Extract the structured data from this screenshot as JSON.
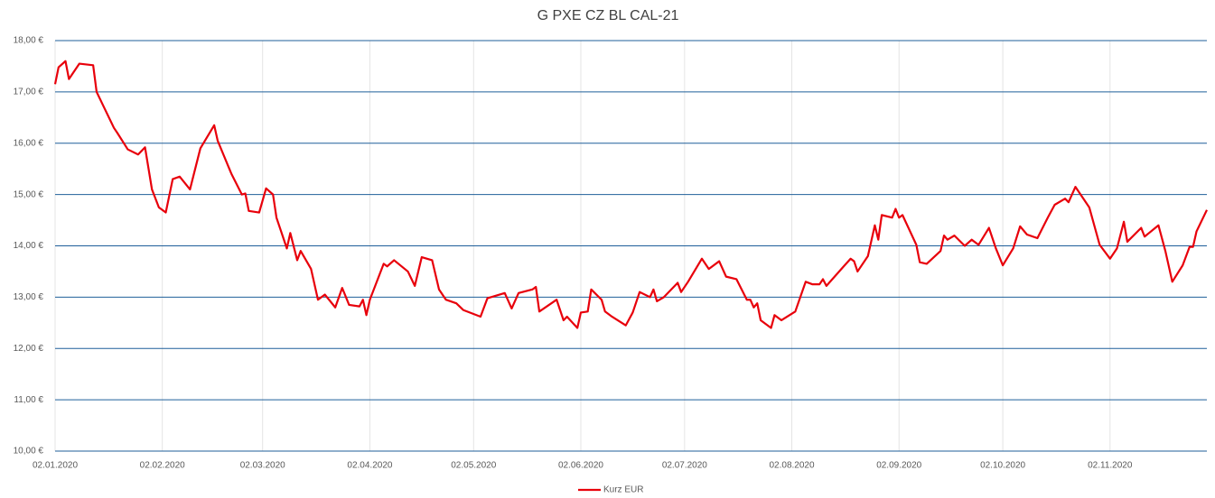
{
  "chart_data": {
    "type": "line",
    "title": "G PXE CZ BL CAL-21",
    "x": [
      "2020-01-02",
      "2020-01-03",
      "2020-01-05",
      "2020-01-06",
      "2020-01-09",
      "2020-01-13",
      "2020-01-14",
      "2020-01-16",
      "2020-01-19",
      "2020-01-20",
      "2020-01-23",
      "2020-01-26",
      "2020-01-28",
      "2020-01-30",
      "2020-02-01",
      "2020-02-03",
      "2020-02-05",
      "2020-02-07",
      "2020-02-10",
      "2020-02-13",
      "2020-02-17",
      "2020-02-18",
      "2020-02-22",
      "2020-02-25",
      "2020-02-26",
      "2020-02-27",
      "2020-03-01",
      "2020-03-03",
      "2020-03-05",
      "2020-03-06",
      "2020-03-09",
      "2020-03-10",
      "2020-03-12",
      "2020-03-13",
      "2020-03-16",
      "2020-03-18",
      "2020-03-20",
      "2020-03-23",
      "2020-03-25",
      "2020-03-27",
      "2020-03-30",
      "2020-03-31",
      "2020-04-01",
      "2020-04-02",
      "2020-04-06",
      "2020-04-07",
      "2020-04-09",
      "2020-04-13",
      "2020-04-15",
      "2020-04-17",
      "2020-04-20",
      "2020-04-22",
      "2020-04-24",
      "2020-04-27",
      "2020-04-29",
      "2020-05-04",
      "2020-05-06",
      "2020-05-11",
      "2020-05-13",
      "2020-05-15",
      "2020-05-19",
      "2020-05-20",
      "2020-05-21",
      "2020-05-26",
      "2020-05-28",
      "2020-05-29",
      "2020-06-01",
      "2020-06-02",
      "2020-06-04",
      "2020-06-05",
      "2020-06-08",
      "2020-06-09",
      "2020-06-11",
      "2020-06-15",
      "2020-06-17",
      "2020-06-19",
      "2020-06-22",
      "2020-06-23",
      "2020-06-24",
      "2020-06-26",
      "2020-06-30",
      "2020-07-01",
      "2020-07-03",
      "2020-07-07",
      "2020-07-09",
      "2020-07-12",
      "2020-07-14",
      "2020-07-17",
      "2020-07-20",
      "2020-07-21",
      "2020-07-22",
      "2020-07-23",
      "2020-07-24",
      "2020-07-27",
      "2020-07-28",
      "2020-07-30",
      "2020-08-03",
      "2020-08-06",
      "2020-08-08",
      "2020-08-10",
      "2020-08-11",
      "2020-08-12",
      "2020-08-17",
      "2020-08-19",
      "2020-08-20",
      "2020-08-21",
      "2020-08-24",
      "2020-08-26",
      "2020-08-27",
      "2020-08-28",
      "2020-08-31",
      "2020-09-01",
      "2020-09-02",
      "2020-09-03",
      "2020-09-07",
      "2020-09-08",
      "2020-09-10",
      "2020-09-14",
      "2020-09-15",
      "2020-09-16",
      "2020-09-18",
      "2020-09-21",
      "2020-09-23",
      "2020-09-25",
      "2020-09-28",
      "2020-09-30",
      "2020-10-02",
      "2020-10-05",
      "2020-10-07",
      "2020-10-09",
      "2020-10-12",
      "2020-10-15",
      "2020-10-17",
      "2020-10-20",
      "2020-10-21",
      "2020-10-23",
      "2020-10-25",
      "2020-10-27",
      "2020-10-30",
      "2020-11-02",
      "2020-11-04",
      "2020-11-06",
      "2020-11-07",
      "2020-11-11",
      "2020-11-12",
      "2020-11-16",
      "2020-11-18",
      "2020-11-20",
      "2020-11-23",
      "2020-11-25",
      "2020-11-26",
      "2020-11-27",
      "2020-11-30"
    ],
    "series": [
      {
        "name": "Kurz EUR",
        "color": "#e8000b",
        "values": [
          17.15,
          17.48,
          17.6,
          17.25,
          17.55,
          17.52,
          17.0,
          16.72,
          16.3,
          16.2,
          15.88,
          15.78,
          15.92,
          15.1,
          14.75,
          14.65,
          15.3,
          15.35,
          15.1,
          15.9,
          16.35,
          16.05,
          15.4,
          15.0,
          15.02,
          14.68,
          14.65,
          15.12,
          15.0,
          14.55,
          13.95,
          14.25,
          13.72,
          13.9,
          13.55,
          12.95,
          13.05,
          12.8,
          13.18,
          12.85,
          12.82,
          12.95,
          12.65,
          12.95,
          13.65,
          13.6,
          13.72,
          13.5,
          13.22,
          13.78,
          13.72,
          13.15,
          12.95,
          12.88,
          12.75,
          12.62,
          12.98,
          13.08,
          12.78,
          13.08,
          13.15,
          13.2,
          12.72,
          12.95,
          12.55,
          12.62,
          12.4,
          12.7,
          12.72,
          13.15,
          12.95,
          12.72,
          12.62,
          12.45,
          12.7,
          13.1,
          13.0,
          13.15,
          12.92,
          13.0,
          13.28,
          13.1,
          13.3,
          13.75,
          13.55,
          13.7,
          13.4,
          13.35,
          12.95,
          12.95,
          12.8,
          12.88,
          12.55,
          12.4,
          12.65,
          12.55,
          12.72,
          13.3,
          13.25,
          13.25,
          13.35,
          13.22,
          13.6,
          13.75,
          13.7,
          13.5,
          13.8,
          14.4,
          14.12,
          14.6,
          14.55,
          14.72,
          14.55,
          14.6,
          14.02,
          13.68,
          13.65,
          13.9,
          14.2,
          14.12,
          14.2,
          14.0,
          14.12,
          14.02,
          14.35,
          13.95,
          13.62,
          13.95,
          14.38,
          14.22,
          14.15,
          14.55,
          14.8,
          14.92,
          14.85,
          15.15,
          14.95,
          14.75,
          14.02,
          13.75,
          13.95,
          14.47,
          14.08,
          14.35,
          14.18,
          14.4,
          13.9,
          13.3,
          13.62,
          13.98,
          13.98,
          14.28,
          14.7
        ]
      }
    ],
    "xlim": [
      "2020-01-02",
      "2020-11-30"
    ],
    "xticks": [
      {
        "value": "2020-01-02",
        "label": "02.01.2020"
      },
      {
        "value": "2020-02-02",
        "label": "02.02.2020"
      },
      {
        "value": "2020-03-02",
        "label": "02.03.2020"
      },
      {
        "value": "2020-04-02",
        "label": "02.04.2020"
      },
      {
        "value": "2020-05-02",
        "label": "02.05.2020"
      },
      {
        "value": "2020-06-02",
        "label": "02.06.2020"
      },
      {
        "value": "2020-07-02",
        "label": "02.07.2020"
      },
      {
        "value": "2020-08-02",
        "label": "02.08.2020"
      },
      {
        "value": "2020-09-02",
        "label": "02.09.2020"
      },
      {
        "value": "2020-10-02",
        "label": "02.10.2020"
      },
      {
        "value": "2020-11-02",
        "label": "02.11.2020"
      }
    ],
    "ylim": [
      10,
      18
    ],
    "yticks": [
      {
        "value": 10,
        "label": "10,00 €"
      },
      {
        "value": 11,
        "label": "11,00 €"
      },
      {
        "value": 12,
        "label": "12,00 €"
      },
      {
        "value": 13,
        "label": "13,00 €"
      },
      {
        "value": 14,
        "label": "14,00 €"
      },
      {
        "value": 15,
        "label": "15,00 €"
      },
      {
        "value": 16,
        "label": "16,00 €"
      },
      {
        "value": 17,
        "label": "17,00 €"
      },
      {
        "value": 18,
        "label": "18,00 €"
      }
    ],
    "grid": true,
    "legend": "bottom"
  }
}
